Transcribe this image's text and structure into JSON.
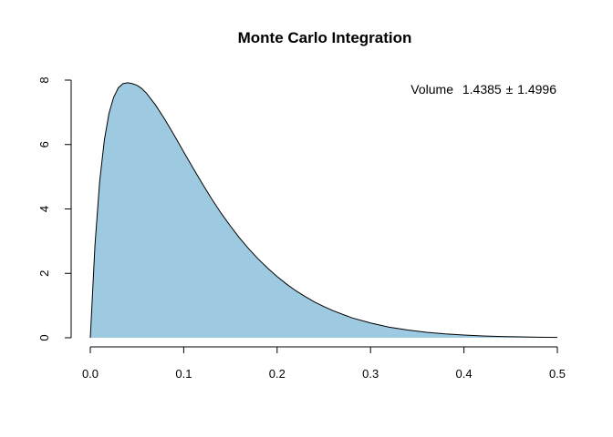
{
  "chart_data": {
    "type": "area",
    "title": "Monte Carlo Integration",
    "xlabel": "",
    "ylabel": "",
    "xlim": [
      0,
      0.5
    ],
    "ylim": [
      0,
      8
    ],
    "x_ticks": [
      "0.0",
      "0.1",
      "0.2",
      "0.3",
      "0.4",
      "0.5"
    ],
    "y_ticks": [
      "0",
      "2",
      "4",
      "6",
      "8"
    ],
    "fill_color": "#9ECAE1",
    "line_color": "#000000",
    "grid": false,
    "series": [
      {
        "x": [
          0,
          0.005,
          0.01,
          0.015,
          0.02,
          0.025,
          0.03,
          0.035,
          0.04,
          0.045,
          0.05,
          0.055,
          0.06,
          0.07,
          0.08,
          0.09,
          0.1,
          0.11,
          0.12,
          0.13,
          0.14,
          0.15,
          0.16,
          0.17,
          0.18,
          0.19,
          0.2,
          0.21,
          0.22,
          0.23,
          0.24,
          0.25,
          0.26,
          0.28,
          0.3,
          0.32,
          0.34,
          0.36,
          0.38,
          0.4,
          0.42,
          0.44,
          0.46,
          0.48,
          0.5
        ],
        "y": [
          0,
          2.88,
          4.85,
          6.13,
          6.97,
          7.47,
          7.76,
          7.89,
          7.92,
          7.89,
          7.84,
          7.74,
          7.6,
          7.22,
          6.77,
          6.28,
          5.77,
          5.27,
          4.78,
          4.31,
          3.87,
          3.47,
          3.09,
          2.75,
          2.44,
          2.16,
          1.9,
          1.67,
          1.46,
          1.28,
          1.11,
          0.97,
          0.84,
          0.62,
          0.46,
          0.33,
          0.24,
          0.17,
          0.12,
          0.085,
          0.058,
          0.04,
          0.027,
          0.018,
          0.012
        ]
      }
    ],
    "annotation": {
      "label": "Volume",
      "value": "1.4385",
      "symbol": "±",
      "error": "1.4996"
    }
  }
}
